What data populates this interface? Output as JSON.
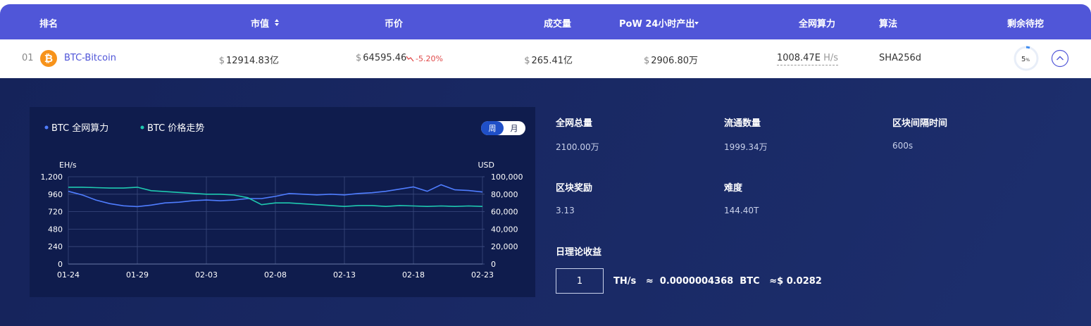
{
  "table": {
    "headers": [
      "排名",
      "市值",
      "币价",
      "成交量",
      "PoW 24小时产出",
      "全网算力",
      "算法",
      "剩余待挖"
    ],
    "row": {
      "rank": "01",
      "coin_symbol": "₿",
      "name": "BTC-Bitcoin",
      "currency": "$",
      "market_cap": "12914.83亿",
      "price": "64595.46",
      "change": "-5.20%",
      "volume": "265.41亿",
      "pow_output": "2906.80万",
      "hashrate": "1008.47E",
      "hashrate_unit": "H/s",
      "algorithm": "SHA256d",
      "remaining": 5,
      "remaining_unit": "%"
    }
  },
  "tabs": [
    "周",
    "月"
  ],
  "stats": [
    {
      "label": "全网总量",
      "value": "2100.00万"
    },
    {
      "label": "流通数量",
      "value": "1999.34万"
    },
    {
      "label": "区块间隔时间",
      "value": "600s"
    },
    {
      "label": "区块奖励",
      "value": "3.13"
    },
    {
      "label": "难度",
      "value": "144.40T"
    }
  ],
  "calculator": {
    "title": "日理论收益",
    "input": "1",
    "unit": "TH/s",
    "approx": "≈",
    "btc_amount": "0.0000004368",
    "btc_unit": "BTC",
    "usd_amount": "0.0282"
  },
  "chart_data": {
    "type": "line",
    "y_label": "EH/s",
    "y2_label": "USD",
    "legend": "top-left",
    "grid": true,
    "categories": [
      "01-24",
      null,
      null,
      null,
      null,
      "01-29",
      null,
      null,
      null,
      null,
      "02-03",
      null,
      null,
      null,
      null,
      "02-08",
      null,
      null,
      null,
      null,
      "02-13",
      null,
      null,
      null,
      null,
      "02-18",
      null,
      null,
      null,
      null,
      "02-23"
    ],
    "ylim": [
      0,
      1200
    ],
    "yticks": [
      0,
      240,
      480,
      720,
      960,
      {
        "value": 1200,
        "label": "1,200"
      }
    ],
    "y2lim": [
      0,
      100000
    ],
    "y2ticks": [
      0,
      {
        "value": 20000,
        "label": "20,000"
      },
      {
        "value": 40000,
        "label": "40,000"
      },
      {
        "value": 60000,
        "label": "60,000"
      },
      {
        "value": 80000,
        "label": "80,000"
      },
      {
        "value": 100000,
        "label": "100,000"
      }
    ],
    "series": [
      {
        "name": "BTC 全网算力",
        "color": "#4f7dff",
        "axis": "y",
        "values": [
          1000,
          950,
          880,
          830,
          800,
          790,
          810,
          840,
          850,
          870,
          880,
          870,
          880,
          900,
          900,
          930,
          970,
          960,
          950,
          960,
          950,
          970,
          980,
          1000,
          1030,
          1060,
          1000,
          1090,
          1020,
          1010,
          990
        ]
      },
      {
        "name": "BTC 价格走势",
        "color": "#1fc9b0",
        "axis": "y2",
        "values": [
          88000,
          88000,
          87500,
          87000,
          87000,
          88000,
          84000,
          83000,
          82000,
          81000,
          80000,
          80000,
          79000,
          76000,
          68000,
          70000,
          70000,
          69000,
          68000,
          67000,
          66000,
          67000,
          67000,
          66000,
          67000,
          66500,
          66000,
          66500,
          66000,
          66500,
          66000
        ]
      }
    ]
  }
}
